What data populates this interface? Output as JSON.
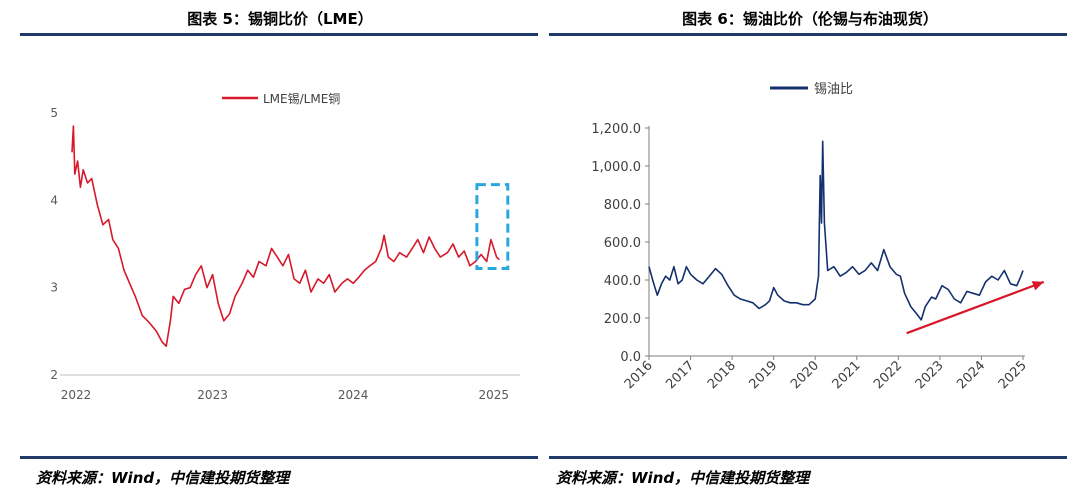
{
  "left": {
    "title": "图表 5：锡铜比价（LME）",
    "source": "资料来源：Wind，中信建投期货整理"
  },
  "right": {
    "title": "图表 6：锡油比价（伦锡与布油现货）",
    "source": "资料来源：Wind，中信建投期货整理"
  },
  "chart_data": [
    {
      "type": "line",
      "title": "",
      "xlabel": "",
      "ylabel": "",
      "x_ticks": [
        "2022",
        "2023",
        "2024",
        "2025"
      ],
      "y_ticks": [
        "2",
        "3",
        "4",
        "5"
      ],
      "ylim": [
        2,
        5
      ],
      "grid": false,
      "legend_position": "top",
      "series": [
        {
          "name": "LME锡/LME铜",
          "color": "#d7182a",
          "points": [
            [
              2022.0,
              4.55
            ],
            [
              2022.01,
              4.85
            ],
            [
              2022.02,
              4.3
            ],
            [
              2022.04,
              4.45
            ],
            [
              2022.06,
              4.15
            ],
            [
              2022.08,
              4.35
            ],
            [
              2022.11,
              4.2
            ],
            [
              2022.14,
              4.25
            ],
            [
              2022.18,
              3.95
            ],
            [
              2022.22,
              3.72
            ],
            [
              2022.26,
              3.78
            ],
            [
              2022.29,
              3.55
            ],
            [
              2022.33,
              3.45
            ],
            [
              2022.37,
              3.2
            ],
            [
              2022.41,
              3.05
            ],
            [
              2022.45,
              2.9
            ],
            [
              2022.5,
              2.68
            ],
            [
              2022.55,
              2.6
            ],
            [
              2022.6,
              2.5
            ],
            [
              2022.64,
              2.38
            ],
            [
              2022.67,
              2.33
            ],
            [
              2022.7,
              2.62
            ],
            [
              2022.72,
              2.9
            ],
            [
              2022.76,
              2.82
            ],
            [
              2022.8,
              2.98
            ],
            [
              2022.84,
              3.0
            ],
            [
              2022.88,
              3.15
            ],
            [
              2022.92,
              3.25
            ],
            [
              2022.96,
              3.0
            ],
            [
              2023.0,
              3.15
            ],
            [
              2023.04,
              2.82
            ],
            [
              2023.08,
              2.62
            ],
            [
              2023.12,
              2.7
            ],
            [
              2023.16,
              2.9
            ],
            [
              2023.21,
              3.05
            ],
            [
              2023.25,
              3.2
            ],
            [
              2023.29,
              3.12
            ],
            [
              2023.33,
              3.3
            ],
            [
              2023.38,
              3.25
            ],
            [
              2023.42,
              3.45
            ],
            [
              2023.46,
              3.35
            ],
            [
              2023.5,
              3.25
            ],
            [
              2023.54,
              3.38
            ],
            [
              2023.58,
              3.1
            ],
            [
              2023.62,
              3.05
            ],
            [
              2023.66,
              3.2
            ],
            [
              2023.7,
              2.95
            ],
            [
              2023.75,
              3.1
            ],
            [
              2023.79,
              3.05
            ],
            [
              2023.83,
              3.15
            ],
            [
              2023.87,
              2.95
            ],
            [
              2023.92,
              3.05
            ],
            [
              2023.96,
              3.1
            ],
            [
              2024.0,
              3.05
            ],
            [
              2024.04,
              3.12
            ],
            [
              2024.08,
              3.2
            ],
            [
              2024.12,
              3.25
            ],
            [
              2024.16,
              3.3
            ],
            [
              2024.2,
              3.45
            ],
            [
              2024.22,
              3.6
            ],
            [
              2024.25,
              3.35
            ],
            [
              2024.29,
              3.3
            ],
            [
              2024.33,
              3.4
            ],
            [
              2024.38,
              3.35
            ],
            [
              2024.42,
              3.45
            ],
            [
              2024.46,
              3.55
            ],
            [
              2024.5,
              3.4
            ],
            [
              2024.54,
              3.58
            ],
            [
              2024.58,
              3.45
            ],
            [
              2024.62,
              3.35
            ],
            [
              2024.67,
              3.4
            ],
            [
              2024.71,
              3.5
            ],
            [
              2024.75,
              3.35
            ],
            [
              2024.79,
              3.42
            ],
            [
              2024.83,
              3.25
            ],
            [
              2024.87,
              3.3
            ],
            [
              2024.91,
              3.38
            ],
            [
              2024.95,
              3.3
            ],
            [
              2024.98,
              3.55
            ],
            [
              2025.0,
              3.45
            ],
            [
              2025.02,
              3.35
            ],
            [
              2025.04,
              3.32
            ]
          ]
        }
      ],
      "highlight_box": {
        "x_range": [
          2024.88,
          2025.1
        ],
        "y_range": [
          3.22,
          4.18
        ],
        "color": "#29a8e0"
      }
    },
    {
      "type": "line",
      "title": "",
      "xlabel": "",
      "ylabel": "",
      "x_ticks": [
        "2016",
        "2017",
        "2018",
        "2019",
        "2020",
        "2021",
        "2022",
        "2023",
        "2024",
        "2025"
      ],
      "y_ticks": [
        "0.0",
        "200.0",
        "400.0",
        "600.0",
        "800.0",
        "1,000.0",
        "1,200.0"
      ],
      "ylim": [
        0,
        1200
      ],
      "grid": false,
      "legend_position": "top",
      "series": [
        {
          "name": "锡油比",
          "color": "#14316d",
          "points": [
            [
              2016.0,
              470
            ],
            [
              2016.1,
              390
            ],
            [
              2016.2,
              320
            ],
            [
              2016.3,
              380
            ],
            [
              2016.4,
              420
            ],
            [
              2016.5,
              400
            ],
            [
              2016.6,
              470
            ],
            [
              2016.7,
              380
            ],
            [
              2016.8,
              400
            ],
            [
              2016.9,
              470
            ],
            [
              2017.0,
              430
            ],
            [
              2017.15,
              400
            ],
            [
              2017.3,
              380
            ],
            [
              2017.45,
              420
            ],
            [
              2017.6,
              460
            ],
            [
              2017.75,
              430
            ],
            [
              2017.9,
              370
            ],
            [
              2018.05,
              320
            ],
            [
              2018.2,
              300
            ],
            [
              2018.35,
              290
            ],
            [
              2018.5,
              280
            ],
            [
              2018.65,
              250
            ],
            [
              2018.8,
              270
            ],
            [
              2018.9,
              290
            ],
            [
              2019.0,
              360
            ],
            [
              2019.1,
              320
            ],
            [
              2019.25,
              290
            ],
            [
              2019.4,
              280
            ],
            [
              2019.55,
              280
            ],
            [
              2019.7,
              270
            ],
            [
              2019.85,
              270
            ],
            [
              2020.0,
              300
            ],
            [
              2020.08,
              420
            ],
            [
              2020.12,
              950
            ],
            [
              2020.15,
              700
            ],
            [
              2020.18,
              1130
            ],
            [
              2020.22,
              700
            ],
            [
              2020.3,
              450
            ],
            [
              2020.45,
              470
            ],
            [
              2020.6,
              420
            ],
            [
              2020.75,
              440
            ],
            [
              2020.9,
              470
            ],
            [
              2021.05,
              430
            ],
            [
              2021.2,
              450
            ],
            [
              2021.35,
              490
            ],
            [
              2021.5,
              450
            ],
            [
              2021.65,
              560
            ],
            [
              2021.8,
              470
            ],
            [
              2021.95,
              430
            ],
            [
              2022.05,
              420
            ],
            [
              2022.15,
              330
            ],
            [
              2022.3,
              260
            ],
            [
              2022.45,
              220
            ],
            [
              2022.55,
              190
            ],
            [
              2022.65,
              260
            ],
            [
              2022.8,
              310
            ],
            [
              2022.9,
              300
            ],
            [
              2023.05,
              370
            ],
            [
              2023.2,
              350
            ],
            [
              2023.35,
              300
            ],
            [
              2023.5,
              280
            ],
            [
              2023.65,
              340
            ],
            [
              2023.8,
              330
            ],
            [
              2023.95,
              320
            ],
            [
              2024.1,
              390
            ],
            [
              2024.25,
              420
            ],
            [
              2024.4,
              400
            ],
            [
              2024.55,
              450
            ],
            [
              2024.7,
              380
            ],
            [
              2024.85,
              370
            ],
            [
              2024.95,
              420
            ],
            [
              2025.0,
              450
            ]
          ]
        }
      ],
      "trend_arrow": {
        "from": [
          2022.2,
          120
        ],
        "to": [
          2025.5,
          390
        ],
        "color": "#d7182a"
      }
    }
  ]
}
